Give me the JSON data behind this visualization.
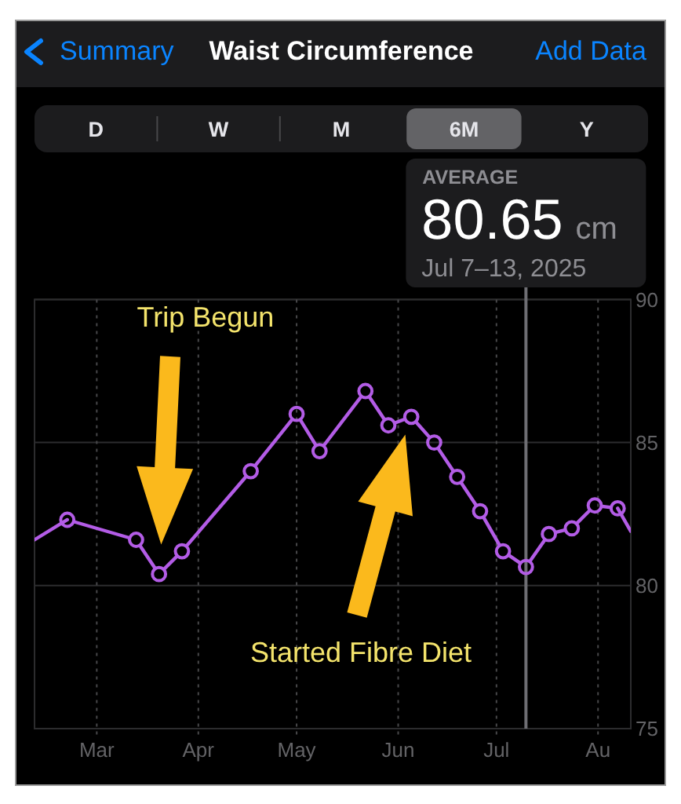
{
  "chart_data": {
    "type": "line",
    "title": "Waist Circumference",
    "annotations": [
      "Summary",
      "Add Data",
      "D",
      "W",
      "M",
      "6M",
      "Y",
      "AVERAGE",
      "80.65 cm",
      "Jul 7–13, 2025",
      "Trip Begun",
      "Started Fibre Diet"
    ],
    "series": [
      {
        "color": "#b35ce6",
        "x": [
          "2025-02-20",
          "2025-03-13",
          "2025-03-20",
          "2025-03-27",
          "2025-04-17",
          "2025-05-01",
          "2025-05-08",
          "2025-05-22",
          "2025-05-29",
          "2025-06-05",
          "2025-06-12",
          "2025-06-19",
          "2025-06-26",
          "2025-07-03",
          "2025-07-10",
          "2025-07-17",
          "2025-07-24",
          "2025-07-31",
          "2025-08-07"
        ],
        "values": [
          82.3,
          81.6,
          80.4,
          81.2,
          84.0,
          86.0,
          84.7,
          86.8,
          85.6,
          85.9,
          85.0,
          83.8,
          82.6,
          81.2,
          80.65,
          81.8,
          82.0,
          82.8,
          82.7
        ]
      },
      {
        "color": "#b35ce6",
        "marker": "none",
        "x": [
          "2025-02-10",
          "2025-02-20"
        ],
        "values": [
          81.6,
          82.3
        ]
      },
      {
        "color": "#b35ce6",
        "marker": "none",
        "x": [
          "2025-08-07",
          "2025-08-11"
        ],
        "values": [
          82.7,
          81.9
        ]
      }
    ],
    "xlim": [
      "2025-02-10",
      "2025-08-11"
    ],
    "xticks": [
      {
        "value": "2025-03-01",
        "label": "Mar"
      },
      {
        "value": "2025-04-01",
        "label": "Apr"
      },
      {
        "value": "2025-05-01",
        "label": "May"
      },
      {
        "value": "2025-06-01",
        "label": "Jun"
      },
      {
        "value": "2025-07-01",
        "label": "Jul"
      },
      {
        "value": "2025-08-01",
        "label": "Au"
      }
    ],
    "ylim": [
      75,
      90
    ],
    "yticks": [
      75,
      80,
      85,
      90
    ],
    "grid": true,
    "marker": "circle",
    "line_style": "solid",
    "ref_lines": [
      {
        "axis": "x",
        "value": "2025-07-10",
        "color": "#6e6e73"
      }
    ]
  }
}
